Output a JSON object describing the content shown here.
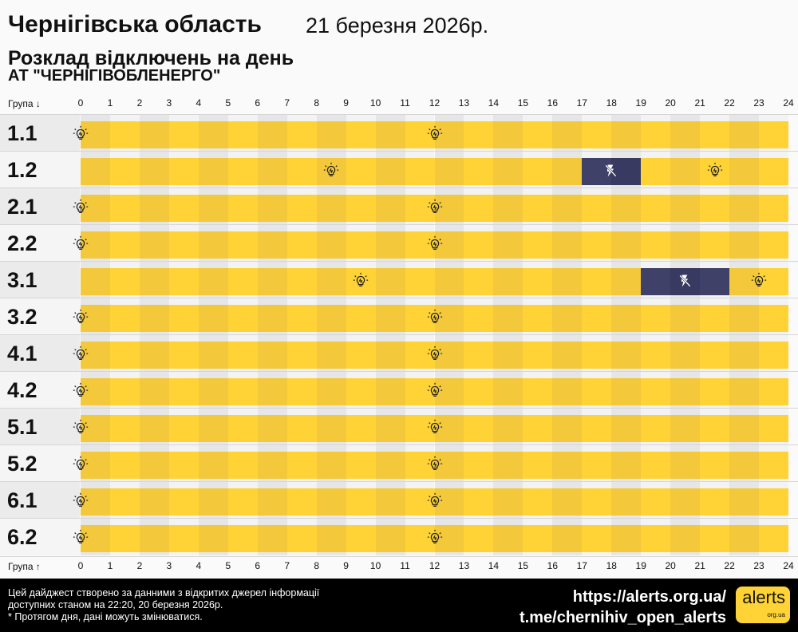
{
  "header": {
    "region": "Чернігівська область",
    "date": "21 березня 2026р.",
    "title": "Розклад відключень на день",
    "company": "АТ \"ЧЕРНІГІВОБЛЕНЕРГО\""
  },
  "axis": {
    "top_label": "Група ↓",
    "bottom_label": "Група ↑",
    "hours": [
      "0",
      "1",
      "2",
      "3",
      "4",
      "5",
      "6",
      "7",
      "8",
      "9",
      "10",
      "11",
      "12",
      "13",
      "14",
      "15",
      "16",
      "17",
      "18",
      "19",
      "20",
      "21",
      "22",
      "23",
      "24"
    ]
  },
  "colors": {
    "power_on": "#ffd335",
    "power_on_alt": "#f3c83a",
    "power_off": "#3f4169",
    "power_off_alt": "#383a61"
  },
  "groups": [
    {
      "name": "1.1",
      "outages": [],
      "bulbs": [
        0,
        12
      ]
    },
    {
      "name": "1.2",
      "outages": [
        [
          17,
          19
        ]
      ],
      "bulbs": [
        8.5,
        21.5
      ]
    },
    {
      "name": "2.1",
      "outages": [],
      "bulbs": [
        0,
        12
      ]
    },
    {
      "name": "2.2",
      "outages": [],
      "bulbs": [
        0,
        12
      ]
    },
    {
      "name": "3.1",
      "outages": [
        [
          19,
          22
        ]
      ],
      "bulbs": [
        9.5,
        23
      ]
    },
    {
      "name": "3.2",
      "outages": [],
      "bulbs": [
        0,
        12
      ]
    },
    {
      "name": "4.1",
      "outages": [],
      "bulbs": [
        0,
        12
      ]
    },
    {
      "name": "4.2",
      "outages": [],
      "bulbs": [
        0,
        12
      ]
    },
    {
      "name": "5.1",
      "outages": [],
      "bulbs": [
        0,
        12
      ]
    },
    {
      "name": "5.2",
      "outages": [],
      "bulbs": [
        0,
        12
      ]
    },
    {
      "name": "6.1",
      "outages": [],
      "bulbs": [
        0,
        12
      ]
    },
    {
      "name": "6.2",
      "outages": [],
      "bulbs": [
        0,
        12
      ]
    }
  ],
  "footer": {
    "note_line1": "Цей дайджест створено за данними з відкритих джерел інформації",
    "note_line2": "доступних станом на 22:20, 20 березня 2026р.",
    "note_line3": "* Протягом дня, дані можуть змінюватися.",
    "site": "https://alerts.org.ua/",
    "telegram": "t.me/chernihiv_open_alerts",
    "logo_text": "alerts",
    "logo_sub": "org.ua"
  }
}
